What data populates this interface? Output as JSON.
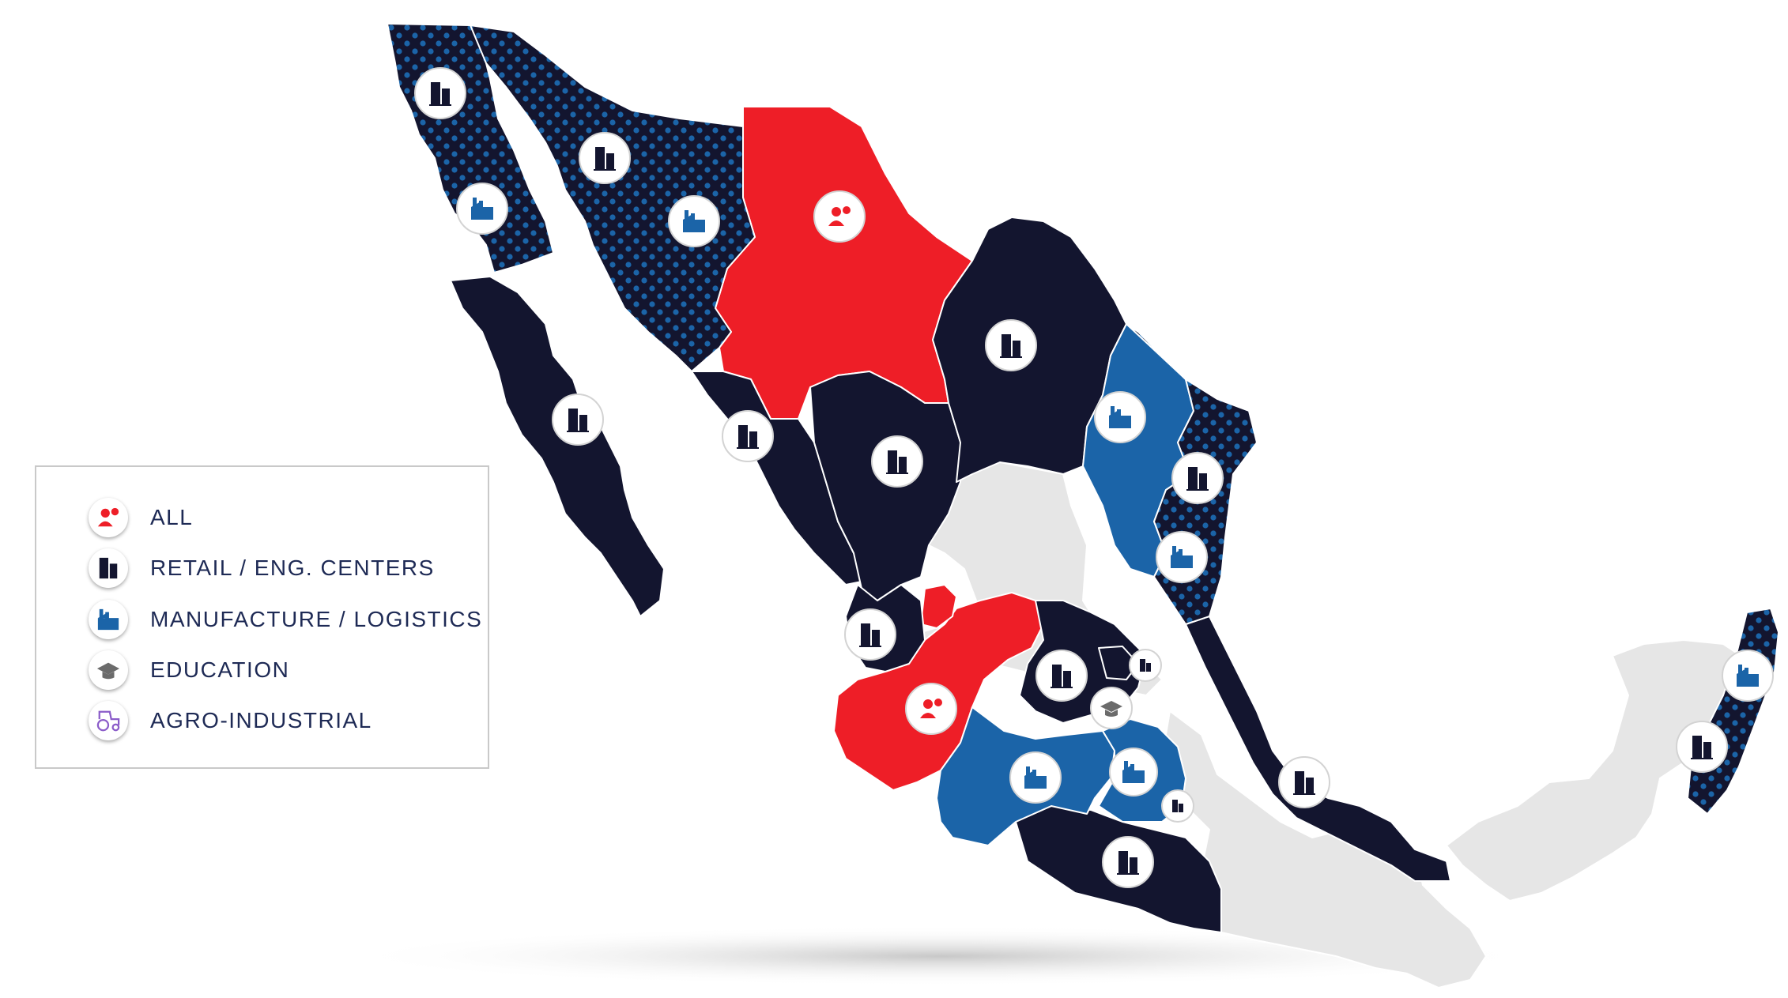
{
  "colors": {
    "all": "#ee1e27",
    "retail": "#13152f",
    "manufacture": "#1b64a8",
    "dots": "#1b64a8",
    "none": "#e6e6e6",
    "education": "#6b6b6b",
    "agro": "#8b5cc9"
  },
  "legend": [
    {
      "key": "all",
      "label": "ALL",
      "icon": "people-gear-icon"
    },
    {
      "key": "retail",
      "label": "RETAIL / ENG. CENTERS",
      "icon": "building-icon"
    },
    {
      "key": "manufacture",
      "label": "MANUFACTURE / LOGISTICS",
      "icon": "factory-icon"
    },
    {
      "key": "education",
      "label": "EDUCATION",
      "icon": "graduation-cap-icon"
    },
    {
      "key": "agro",
      "label": "AGRO-INDUSTRIAL",
      "icon": "tractor-icon"
    }
  ]
}
